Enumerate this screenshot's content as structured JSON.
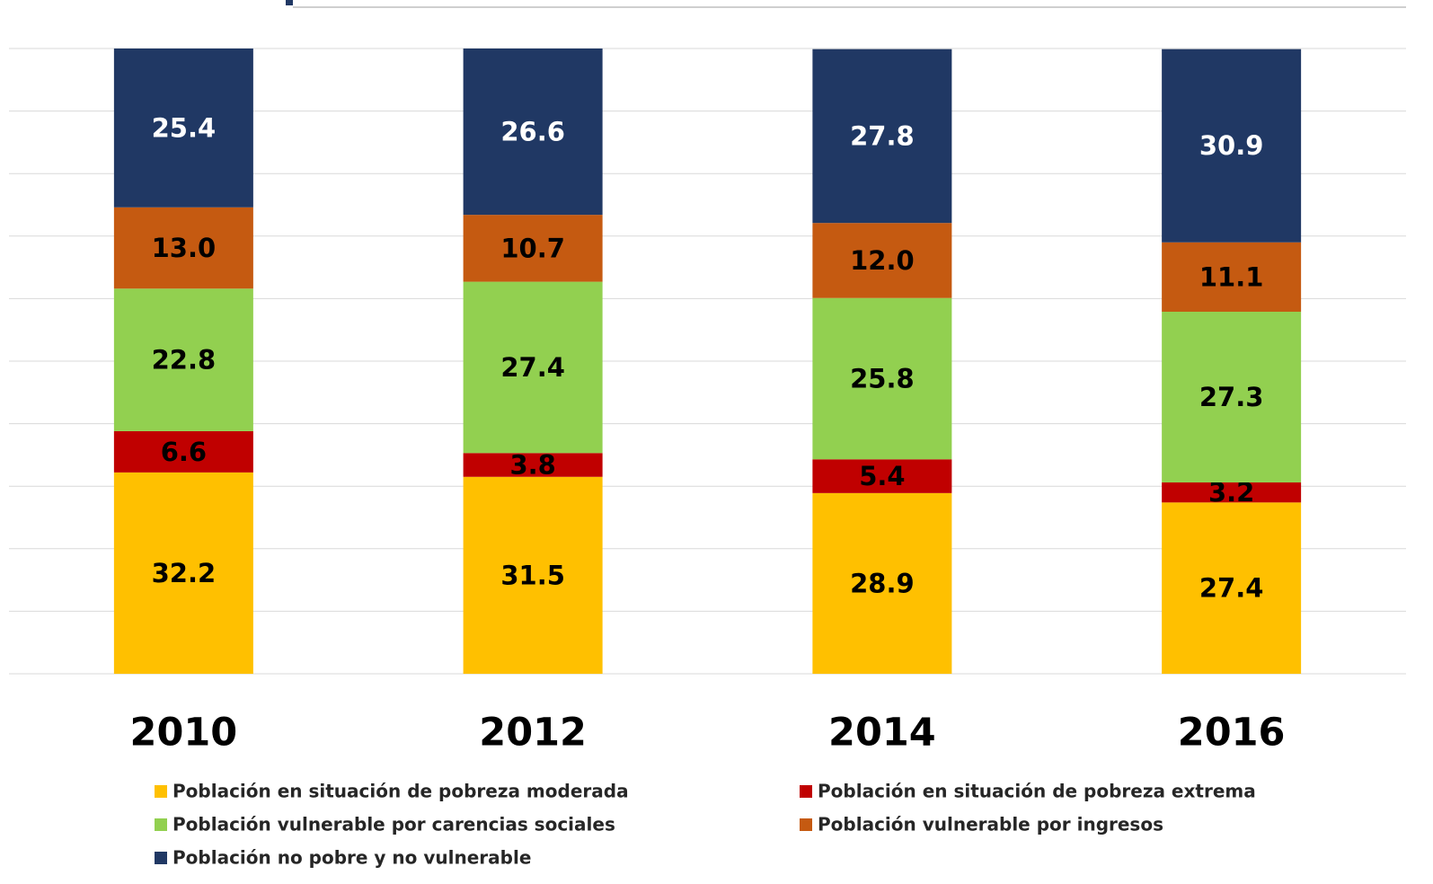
{
  "chart_data": {
    "type": "stacked_bar",
    "categories": [
      "2010",
      "2012",
      "2014",
      "2016"
    ],
    "series": [
      {
        "name": "Población en situación de pobreza moderada",
        "color": "#FFC000",
        "label_color": "#000000",
        "values": [
          32.2,
          31.5,
          28.9,
          27.4
        ],
        "value_labels": [
          "32.2",
          "31.5",
          "28.9",
          "27.4"
        ]
      },
      {
        "name": "Población en situación de pobreza extrema",
        "color": "#C00000",
        "label_color": "#000000",
        "values": [
          6.6,
          3.8,
          5.4,
          3.2
        ],
        "value_labels": [
          "6.6",
          "3.8",
          "5.4",
          "3.2"
        ]
      },
      {
        "name": "Población vulnerable por carencias sociales",
        "color": "#92D050",
        "label_color": "#000000",
        "values": [
          22.8,
          27.4,
          25.8,
          27.3
        ],
        "value_labels": [
          "22.8",
          "27.4",
          "25.8",
          "27.3"
        ]
      },
      {
        "name": "Población vulnerable por ingresos",
        "color": "#C55A11",
        "label_color": "#000000",
        "values": [
          13.0,
          10.7,
          12.0,
          11.1
        ],
        "value_labels": [
          "13.0",
          "10.7",
          "12.0",
          "11.1"
        ]
      },
      {
        "name": "Población no pobre y no vulnerable",
        "color": "#203864",
        "label_color": "#FFFFFF",
        "values": [
          25.4,
          26.6,
          27.8,
          30.9
        ],
        "value_labels": [
          "25.4",
          "26.6",
          "27.8",
          "30.9"
        ]
      }
    ],
    "ylim": [
      0,
      100
    ],
    "yticks": [
      0,
      10,
      20,
      30,
      40,
      50,
      60,
      70,
      80,
      90,
      100
    ],
    "show_ytick_labels": false,
    "grid": true,
    "legend_columns": 2
  }
}
